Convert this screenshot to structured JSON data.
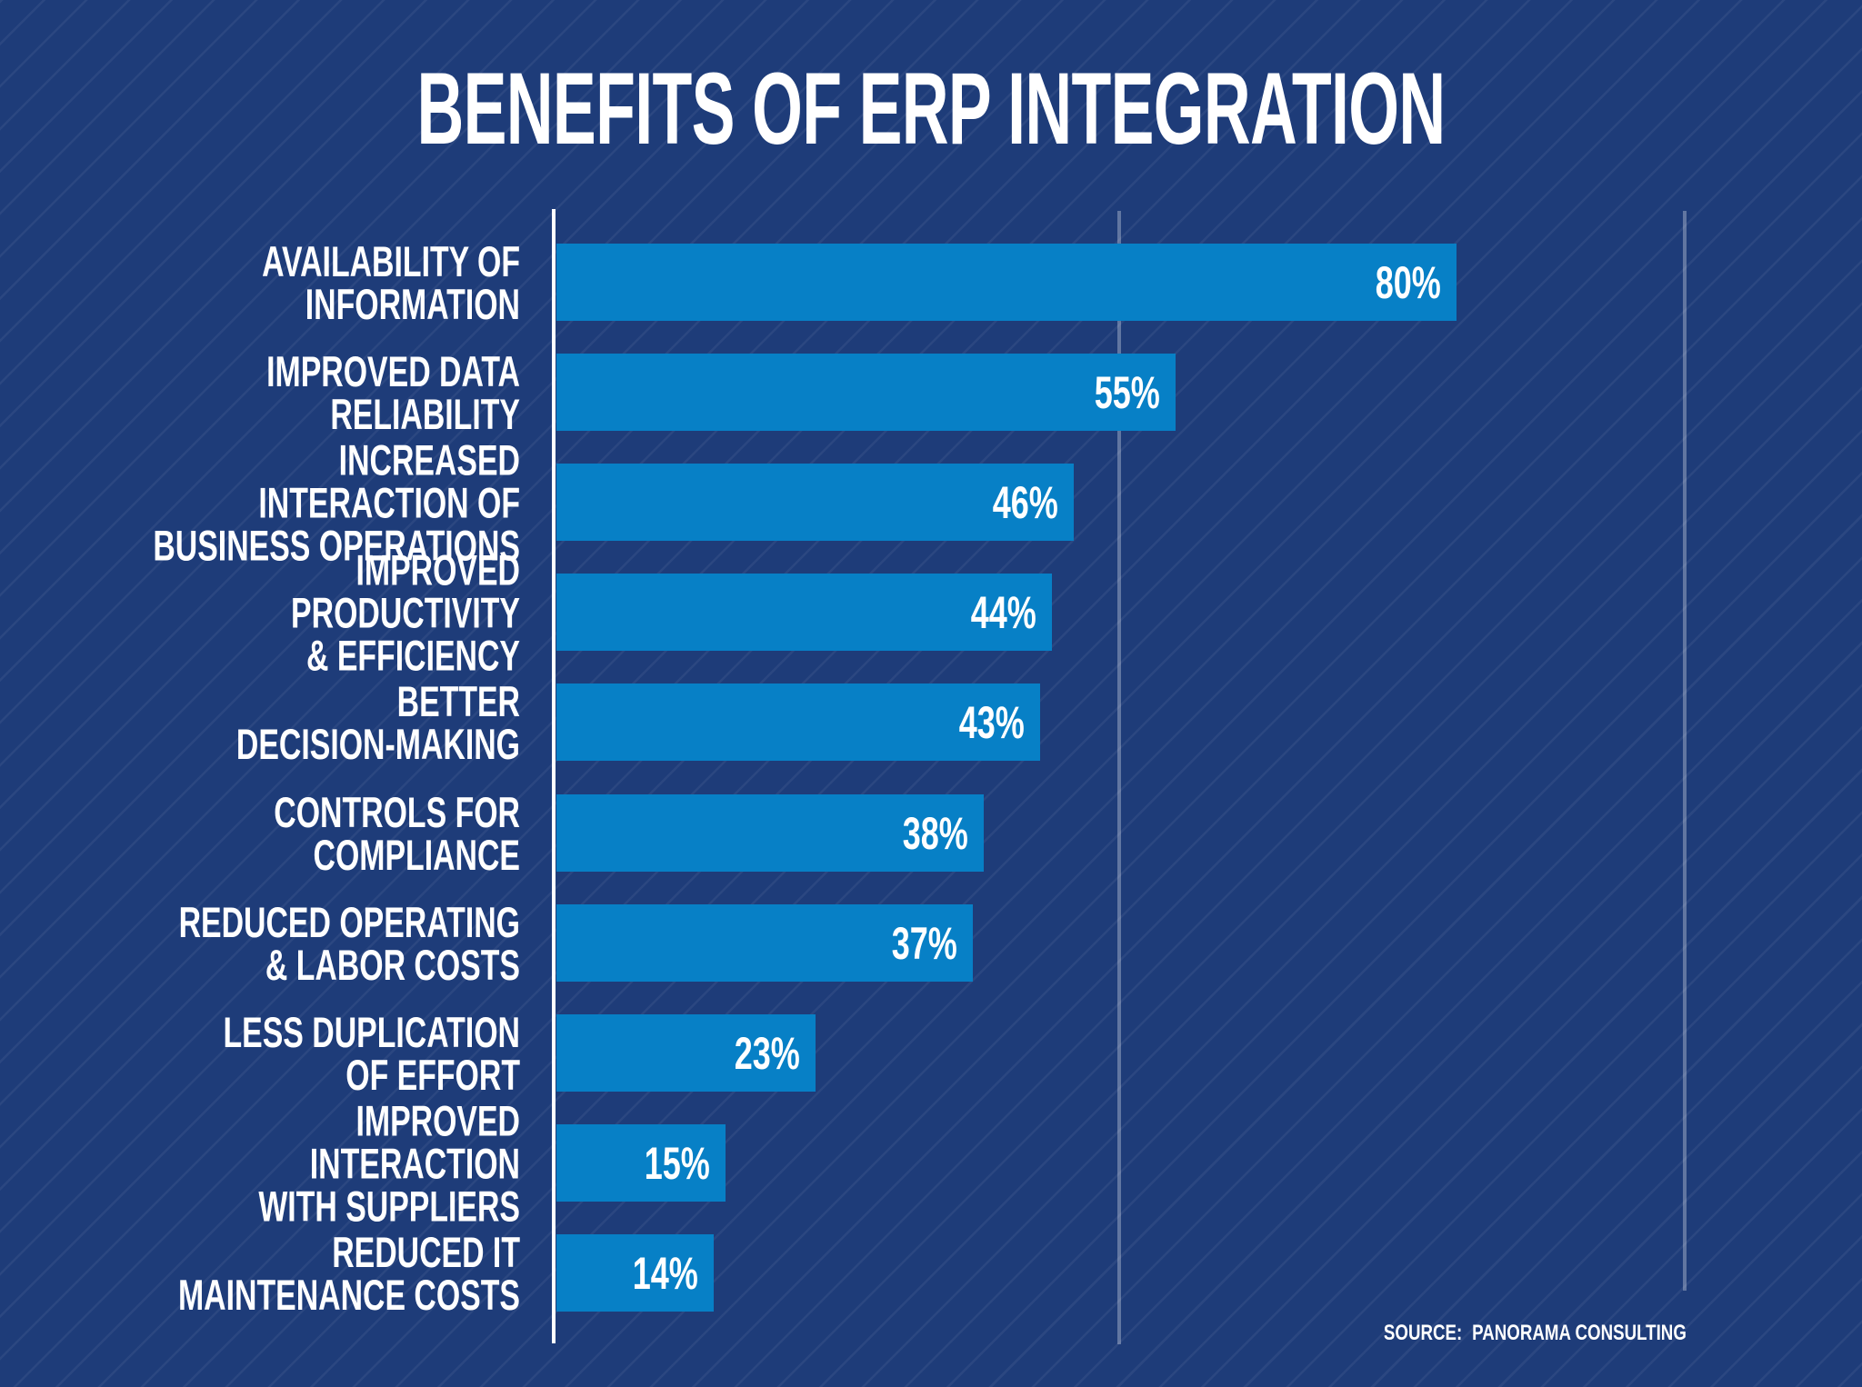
{
  "chart_data": {
    "type": "bar",
    "orientation": "horizontal",
    "title": "BENEFITS OF ERP INTEGRATION",
    "categories": [
      "AVAILABILITY OF\nINFORMATION",
      "IMPROVED DATA\nRELIABILITY",
      "INCREASED INTERACTION OF\nBUSINESS OPERATIONS",
      "IMPROVED PRODUCTIVITY\n& EFFICIENCY",
      "BETTER\nDECISION-MAKING",
      "CONTROLS FOR\nCOMPLIANCE",
      "REDUCED OPERATING\n& LABOR COSTS",
      "LESS DUPLICATION\nOF EFFORT",
      "IMPROVED INTERACTION\nWITH SUPPLIERS",
      "REDUCED IT\nMAINTENANCE COSTS"
    ],
    "values": [
      80,
      55,
      46,
      44,
      43,
      38,
      37,
      23,
      15,
      14
    ],
    "value_labels": [
      "80%",
      "55%",
      "46%",
      "44%",
      "43%",
      "38%",
      "37%",
      "23%",
      "15%",
      "14%"
    ],
    "xlim": [
      0,
      100
    ],
    "gridlines_percent": [
      0,
      50,
      100
    ],
    "gridline_tick_labels": "none",
    "legend": "none"
  },
  "source": {
    "label": "SOURCE:",
    "value": "PANORAMA CONSULTING"
  },
  "colors": {
    "background": "#1e3c79",
    "stripe": "#2b4786",
    "bar": "#0780c6",
    "axis_line": "#ffffff",
    "gridline": "#677ba5",
    "text": "#ffffff"
  }
}
